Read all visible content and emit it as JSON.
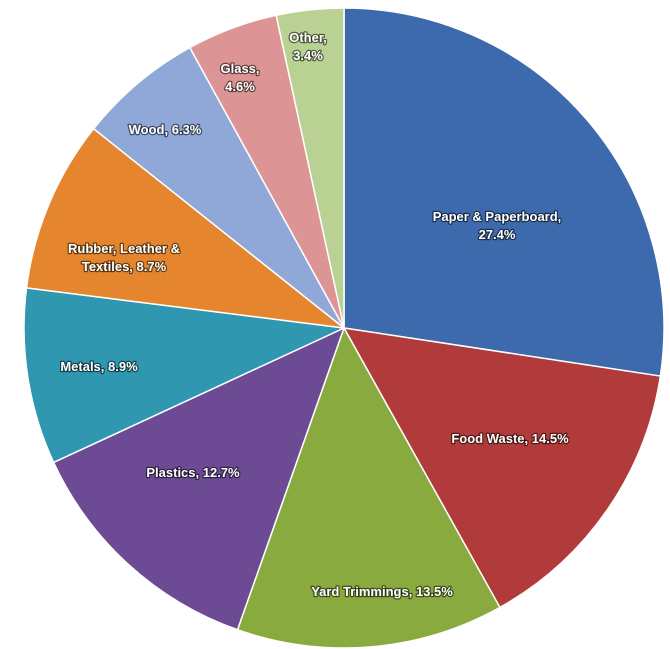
{
  "chart_data": {
    "type": "pie",
    "categories": [
      "Paper & Paperboard",
      "Food Waste",
      "Yard Trimmings",
      "Plastics",
      "Metals",
      "Rubber, Leather & Textiles",
      "Wood",
      "Glass",
      "Other"
    ],
    "values": [
      27.4,
      14.5,
      13.5,
      12.7,
      8.9,
      8.7,
      6.3,
      4.6,
      3.4
    ],
    "labels": [
      [
        "Paper & Paperboard,",
        "27.4%"
      ],
      [
        "Food Waste, 14.5%"
      ],
      [
        "Yard Trimmings, 13.5%"
      ],
      [
        "Plastics, 12.7%"
      ],
      [
        "Metals, 8.9%"
      ],
      [
        "Rubber, Leather &",
        "Textiles, 8.7%"
      ],
      [
        "Wood, 6.3%"
      ],
      [
        "Glass,",
        "4.6%"
      ],
      [
        "Other,",
        "3.4%"
      ]
    ],
    "colors": [
      "#3d6aad",
      "#b03b3a",
      "#88aa3e",
      "#6d4b94",
      "#2f97b0",
      "#e5862e",
      "#8fa8d8",
      "#dd9494",
      "#b9d192"
    ],
    "start_angle": "12 o'clock",
    "direction": "clockwise",
    "legend": "none"
  }
}
